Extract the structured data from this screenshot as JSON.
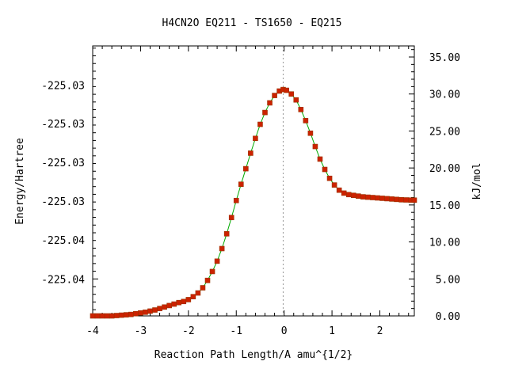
{
  "chart_data": {
    "type": "line",
    "title": "H4CN2O   EQ211 - TS1650 - EQ215",
    "xlabel": "Reaction Path Length/A amu^{1/2}",
    "ylabel": "Energy/Hartree",
    "y2label": "kJ/mol",
    "xlim": [
      -4.0,
      2.72
    ],
    "ylim_right": [
      0,
      36.5
    ],
    "x_ticks": [
      -4,
      -3,
      -2,
      -1,
      0,
      1,
      2
    ],
    "x_tick_labels": [
      "-4",
      "-3",
      "-2",
      "-1",
      "0",
      "1",
      "2"
    ],
    "y_left_tick_labels": [
      "-225.03",
      "-225.03",
      "-225.03",
      "-225.03",
      "-225.04",
      "-225.04"
    ],
    "y_left_tick_values_kjmol": [
      31.2,
      26.0,
      20.75,
      15.5,
      10.25,
      5.0
    ],
    "y_right_ticks": [
      0,
      5,
      10,
      15,
      20,
      25,
      30,
      35
    ],
    "y_right_tick_labels": [
      "0.00",
      "5.00",
      "10.00",
      "15.00",
      "20.00",
      "25.00",
      "30.00",
      "35.00"
    ],
    "ts_marker_x": -0.02,
    "grid": false,
    "series": [
      {
        "line_color": "#00aa00",
        "marker_color": "#cc2200",
        "points": [
          [
            -4.0,
            0.0
          ],
          [
            -3.9,
            0.0
          ],
          [
            -3.8,
            0.0
          ],
          [
            -3.7,
            0.0
          ],
          [
            -3.6,
            0.0
          ],
          [
            -3.5,
            0.05
          ],
          [
            -3.4,
            0.1
          ],
          [
            -3.3,
            0.15
          ],
          [
            -3.2,
            0.2
          ],
          [
            -3.1,
            0.3
          ],
          [
            -3.0,
            0.4
          ],
          [
            -2.9,
            0.5
          ],
          [
            -2.8,
            0.65
          ],
          [
            -2.7,
            0.8
          ],
          [
            -2.6,
            1.0
          ],
          [
            -2.5,
            1.2
          ],
          [
            -2.4,
            1.4
          ],
          [
            -2.3,
            1.6
          ],
          [
            -2.2,
            1.8
          ],
          [
            -2.1,
            1.95
          ],
          [
            -2.0,
            2.2
          ],
          [
            -1.9,
            2.6
          ],
          [
            -1.8,
            3.1
          ],
          [
            -1.7,
            3.8
          ],
          [
            -1.6,
            4.8
          ],
          [
            -1.5,
            6.0
          ],
          [
            -1.4,
            7.4
          ],
          [
            -1.3,
            9.1
          ],
          [
            -1.2,
            11.1
          ],
          [
            -1.1,
            13.3
          ],
          [
            -1.0,
            15.6
          ],
          [
            -0.9,
            17.8
          ],
          [
            -0.8,
            19.9
          ],
          [
            -0.7,
            22.0
          ],
          [
            -0.6,
            24.0
          ],
          [
            -0.5,
            25.9
          ],
          [
            -0.4,
            27.5
          ],
          [
            -0.3,
            28.8
          ],
          [
            -0.2,
            29.8
          ],
          [
            -0.1,
            30.4
          ],
          [
            -0.02,
            30.6
          ],
          [
            0.05,
            30.5
          ],
          [
            0.15,
            30.0
          ],
          [
            0.25,
            29.2
          ],
          [
            0.35,
            27.9
          ],
          [
            0.45,
            26.4
          ],
          [
            0.55,
            24.7
          ],
          [
            0.65,
            22.9
          ],
          [
            0.75,
            21.2
          ],
          [
            0.85,
            19.8
          ],
          [
            0.95,
            18.6
          ],
          [
            1.05,
            17.7
          ],
          [
            1.15,
            17.0
          ],
          [
            1.25,
            16.6
          ],
          [
            1.35,
            16.4
          ],
          [
            1.45,
            16.3
          ],
          [
            1.55,
            16.2
          ],
          [
            1.65,
            16.1
          ],
          [
            1.75,
            16.05
          ],
          [
            1.85,
            16.0
          ],
          [
            1.95,
            15.95
          ],
          [
            2.05,
            15.9
          ],
          [
            2.15,
            15.85
          ],
          [
            2.25,
            15.8
          ],
          [
            2.35,
            15.75
          ],
          [
            2.45,
            15.7
          ],
          [
            2.55,
            15.68
          ],
          [
            2.65,
            15.66
          ],
          [
            2.72,
            15.65
          ]
        ]
      }
    ]
  }
}
